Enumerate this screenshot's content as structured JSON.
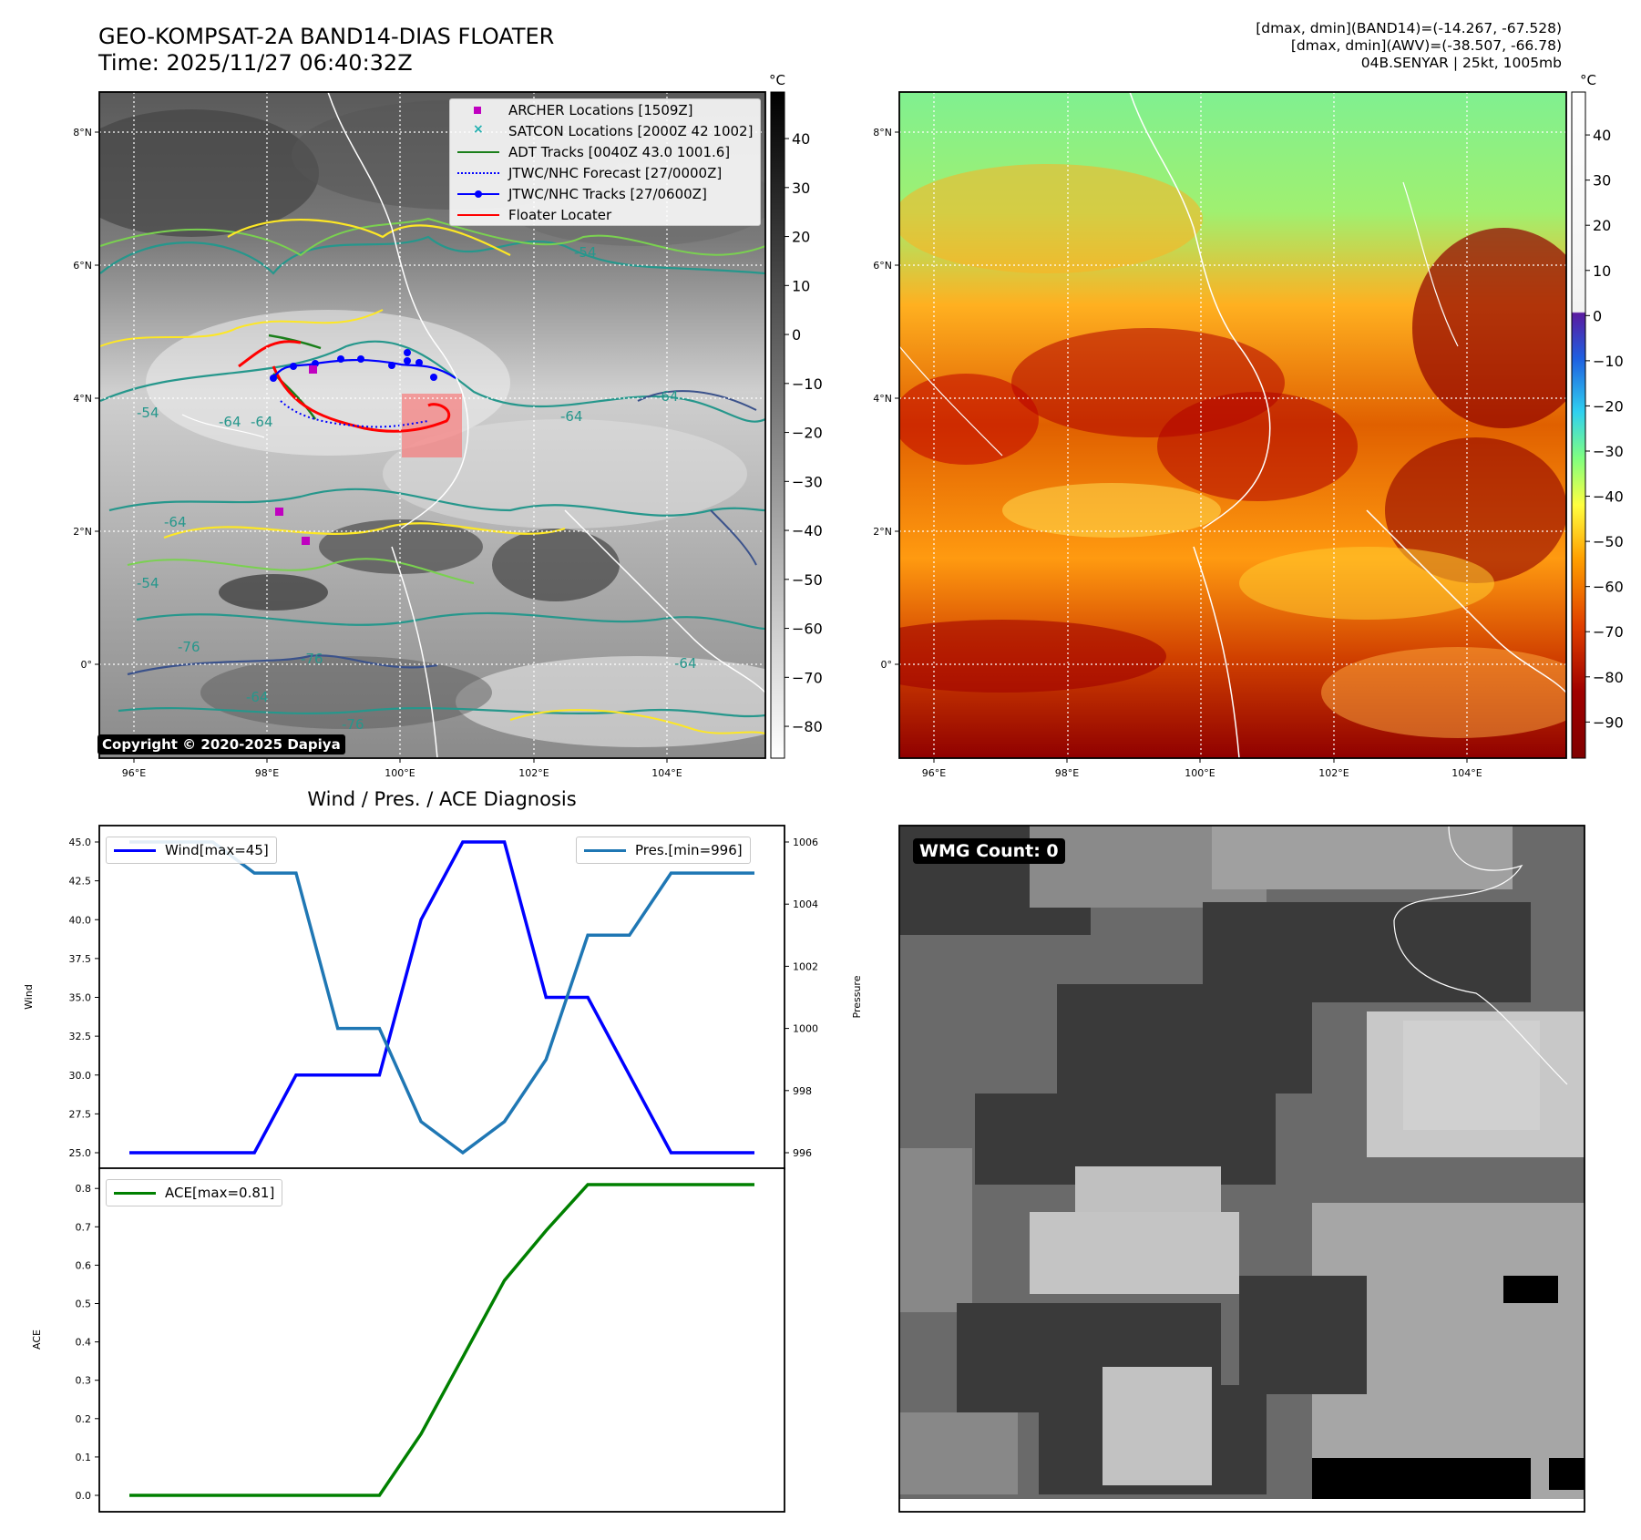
{
  "header": {
    "title_line1": "GEO-KOMPSAT-2A BAND14-DIAS FLOATER",
    "title_line2": "Time: 2025/11/27 06:40:32Z",
    "info_line1": "[dmax, dmin](BAND14)=(-14.267, -67.528)",
    "info_line2": "[dmax, dmin](AWV)=(-38.507, -66.78)",
    "info_line3": "04B.SENYAR | 25kt, 1005mb"
  },
  "map_panel": {
    "lon_ticks": [
      "96°E",
      "98°E",
      "100°E",
      "102°E",
      "104°E"
    ],
    "lat_ticks": [
      "8°N",
      "6°N",
      "4°N",
      "2°N",
      "0°"
    ],
    "copyright": "Copyright © 2020-2025 Dapiya",
    "contour_labels": [
      "-54",
      "-64",
      "-64",
      "-54",
      "-64",
      "-76",
      "-76",
      "-64",
      "-64",
      "-64",
      "-64",
      "-54",
      "-76"
    ],
    "legend": [
      {
        "label": "ARCHER Locations [1509Z]",
        "color": "#c000c0",
        "marker": "square"
      },
      {
        "label": "SATCON Locations [2000Z 42 1002]",
        "color": "#20b0b0",
        "marker": "x"
      },
      {
        "label": "ADT Tracks [0040Z 43.0 1001.6]",
        "color": "#1a7f1a",
        "marker": "line"
      },
      {
        "label": "JTWC/NHC Forecast [27/0000Z]",
        "color": "#0000ff",
        "marker": "dotted"
      },
      {
        "label": "JTWC/NHC Tracks [27/0600Z]",
        "color": "#0000ff",
        "marker": "line-dot"
      },
      {
        "label": "Floater Locater",
        "color": "#ff0000",
        "marker": "line"
      }
    ]
  },
  "colorbar_gray": {
    "unit": "°C",
    "ticks": [
      "40",
      "30",
      "20",
      "10",
      "0",
      "−10",
      "−20",
      "−30",
      "−40",
      "−50",
      "−60",
      "−70",
      "−80"
    ]
  },
  "colorbar_color": {
    "unit": "°C",
    "ticks": [
      "40",
      "30",
      "20",
      "10",
      "0",
      "−10",
      "−20",
      "−30",
      "−40",
      "−50",
      "−60",
      "−70",
      "−80",
      "−90"
    ]
  },
  "diagnosis": {
    "title": "Wind / Pres. / ACE Diagnosis",
    "wind_ylabel": "Wind",
    "pressure_ylabel": "Pressure",
    "ace_ylabel": "ACE",
    "wmg_label": "WMG Count: 0"
  },
  "chart_data": [
    {
      "type": "line",
      "title": "Wind / Pres. / ACE Diagnosis",
      "x": [
        0,
        1,
        2,
        3,
        4,
        5,
        6,
        7,
        8,
        9,
        10,
        11,
        12,
        13,
        14,
        15
      ],
      "series": [
        {
          "name": "Wind[max=45]",
          "axis": "left",
          "color": "#0000ff",
          "values": [
            25,
            25,
            25,
            25,
            30,
            30,
            30,
            40,
            45,
            45,
            35,
            35,
            30,
            25,
            25,
            25
          ]
        },
        {
          "name": "Pres.[min=996]",
          "axis": "right",
          "color": "#1f77b4",
          "values": [
            1006,
            1006,
            1006,
            1005,
            1005,
            1000,
            1000,
            997,
            996,
            997,
            999,
            1003,
            1003,
            1005,
            1005,
            1005
          ]
        }
      ],
      "ylabel": "Wind",
      "ylim": [
        25,
        45
      ],
      "y_ticks": [
        "45.0",
        "42.5",
        "40.0",
        "37.5",
        "35.0",
        "32.5",
        "30.0",
        "27.5",
        "25.0"
      ],
      "y2label": "Pressure",
      "y2lim": [
        996,
        1006
      ],
      "y2_ticks": [
        "1006",
        "1004",
        "1002",
        "1000",
        "998",
        "996"
      ],
      "legend": [
        "top-left",
        "top-right"
      ]
    },
    {
      "type": "line",
      "x": [
        0,
        1,
        2,
        3,
        4,
        5,
        6,
        7,
        8,
        9,
        10,
        11,
        12,
        13,
        14,
        15
      ],
      "series": [
        {
          "name": "ACE[max=0.81]",
          "color": "#008000",
          "values": [
            0,
            0,
            0,
            0,
            0,
            0,
            0,
            0.16,
            0.36,
            0.56,
            0.69,
            0.81,
            0.81,
            0.81,
            0.81,
            0.81
          ]
        }
      ],
      "ylabel": "ACE",
      "ylim": [
        0,
        0.81
      ],
      "y_ticks": [
        "0.8",
        "0.7",
        "0.6",
        "0.5",
        "0.4",
        "0.3",
        "0.2",
        "0.1",
        "0.0"
      ],
      "legend": "top-left"
    }
  ]
}
